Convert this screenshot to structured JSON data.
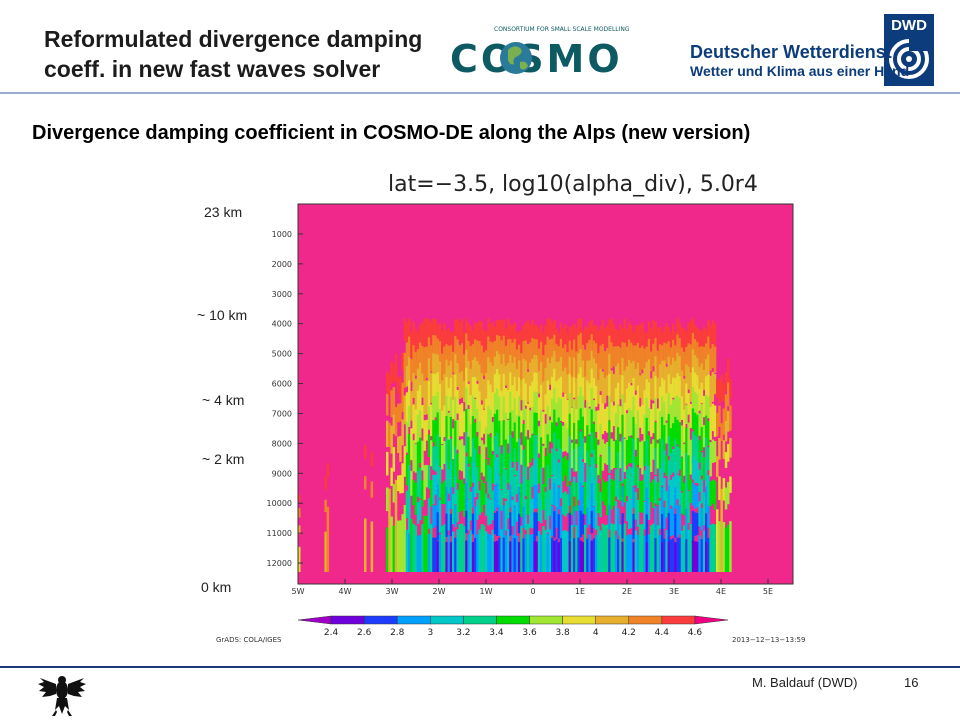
{
  "header": {
    "title_line1": "Reformulated divergence damping",
    "title_line2": "coeff. in new fast waves solver",
    "cosmo_logo_text": "COSMO",
    "cosmo_logo_caption": "CONSORTIUM FOR SMALL SCALE MODELLING",
    "dwd_badge": "DWD",
    "dwd_name": "Deutscher Wetterdienst",
    "dwd_tagline": "Wetter und Klima aus einer Hand"
  },
  "subtitle": "Divergence damping coefficient  in COSMO-DE along the Alps (new version)",
  "height_labels": [
    "23 km",
    "~ 10 km",
    "~ 4 km",
    "~ 2 km",
    "0 km"
  ],
  "footer": {
    "author": "M. Baldauf (DWD)",
    "page": "16"
  },
  "colors": {
    "header_rule": "#9aaed0",
    "footer_rule": "#1b3a7a",
    "dwd_blue": "#0c3c7c",
    "cosmo_teal": "#0e5a62"
  },
  "chart_data": {
    "type": "heatmap",
    "title": "lat=−3.5,  log10(alpha_div),  5.0r4",
    "x_ticks": [
      "5W",
      "4W",
      "3W",
      "2W",
      "1W",
      "0",
      "1E",
      "2E",
      "3E",
      "4E",
      "5E"
    ],
    "x_range": [
      -5,
      5
    ],
    "y_ticks": [
      "1000",
      "2000",
      "3000",
      "4000",
      "5000",
      "6000",
      "7000",
      "8000",
      "9000",
      "10000",
      "11000",
      "12000"
    ],
    "y_range": [
      0,
      12700
    ],
    "y_direction": "downward",
    "colorbar_levels": [
      "2.4",
      "2.6",
      "2.8",
      "3",
      "3.2",
      "3.4",
      "3.6",
      "3.8",
      "4",
      "4.2",
      "4.4",
      "4.6"
    ],
    "colorbar_colors": [
      "#a000c8",
      "#6e00dc",
      "#1e3cff",
      "#00a0ff",
      "#00c8c8",
      "#00d28c",
      "#00dc00",
      "#a0e632",
      "#e6dc32",
      "#e6af2d",
      "#f08228",
      "#fa3c3c",
      "#f00082"
    ],
    "background_color": "#f0288c",
    "footnote_left": "GrADS: COLA/IGES",
    "footnote_right": "2013−12−13−13:59"
  }
}
